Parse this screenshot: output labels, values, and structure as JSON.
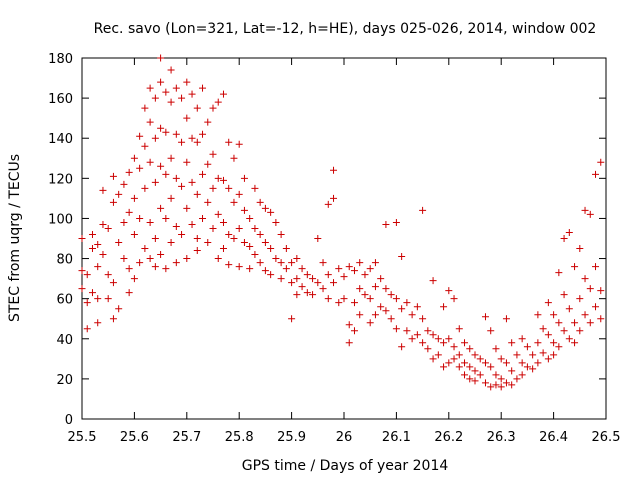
{
  "chart_data": {
    "type": "scatter",
    "title": "Rec. savo (Lon=321, Lat=-12, h=HE), days 025-026, 2014, window 002",
    "xlabel": "GPS time / Days of year 2014",
    "ylabel": "STEC from uqrg / TECUs",
    "xlim": [
      25.5,
      26.5
    ],
    "ylim": [
      0,
      180
    ],
    "xticks": [
      25.5,
      25.6,
      25.7,
      25.8,
      25.9,
      26,
      26.1,
      26.2,
      26.3,
      26.4,
      26.5
    ],
    "xtick_labels": [
      "25.5",
      "25.6",
      "25.7",
      "25.8",
      "25.9",
      "26",
      "26.1",
      "26.2",
      "26.3",
      "26.4",
      "26.5"
    ],
    "yticks": [
      0,
      20,
      40,
      60,
      80,
      100,
      120,
      140,
      160,
      180
    ],
    "ytick_labels": [
      "0",
      "20",
      "40",
      "60",
      "80",
      "100",
      "120",
      "140",
      "160",
      "180"
    ],
    "grid": false,
    "marker": "+",
    "color": "#cc0000",
    "series": [
      {
        "name": "STEC",
        "points": [
          [
            25.5,
            74
          ],
          [
            25.5,
            65
          ],
          [
            25.5,
            90
          ],
          [
            25.51,
            45
          ],
          [
            25.51,
            58
          ],
          [
            25.51,
            72
          ],
          [
            25.52,
            63
          ],
          [
            25.52,
            85
          ],
          [
            25.52,
            92
          ],
          [
            25.53,
            48
          ],
          [
            25.53,
            60
          ],
          [
            25.53,
            76
          ],
          [
            25.53,
            87
          ],
          [
            25.54,
            114
          ],
          [
            25.54,
            97
          ],
          [
            25.54,
            82
          ],
          [
            25.55,
            60
          ],
          [
            25.55,
            72
          ],
          [
            25.55,
            95
          ],
          [
            25.56,
            108
          ],
          [
            25.56,
            121
          ],
          [
            25.56,
            68
          ],
          [
            25.56,
            50
          ],
          [
            25.57,
            55
          ],
          [
            25.57,
            88
          ],
          [
            25.57,
            112
          ],
          [
            25.58,
            117
          ],
          [
            25.58,
            98
          ],
          [
            25.58,
            80
          ],
          [
            25.59,
            63
          ],
          [
            25.59,
            123
          ],
          [
            25.59,
            103
          ],
          [
            25.59,
            75
          ],
          [
            25.6,
            130
          ],
          [
            25.6,
            110
          ],
          [
            25.6,
            92
          ],
          [
            25.6,
            70
          ],
          [
            25.61,
            141
          ],
          [
            25.61,
            125
          ],
          [
            25.61,
            100
          ],
          [
            25.61,
            78
          ],
          [
            25.62,
            155
          ],
          [
            25.62,
            136
          ],
          [
            25.62,
            115
          ],
          [
            25.62,
            85
          ],
          [
            25.63,
            165
          ],
          [
            25.63,
            148
          ],
          [
            25.63,
            128
          ],
          [
            25.63,
            98
          ],
          [
            25.63,
            80
          ],
          [
            25.64,
            160
          ],
          [
            25.64,
            140
          ],
          [
            25.64,
            118
          ],
          [
            25.64,
            90
          ],
          [
            25.64,
            76
          ],
          [
            25.65,
            180
          ],
          [
            25.65,
            168
          ],
          [
            25.65,
            145
          ],
          [
            25.65,
            126
          ],
          [
            25.65,
            105
          ],
          [
            25.65,
            82
          ],
          [
            25.66,
            163
          ],
          [
            25.66,
            143
          ],
          [
            25.66,
            122
          ],
          [
            25.66,
            100
          ],
          [
            25.66,
            75
          ],
          [
            25.67,
            174
          ],
          [
            25.67,
            158
          ],
          [
            25.67,
            130
          ],
          [
            25.67,
            110
          ],
          [
            25.67,
            88
          ],
          [
            25.68,
            165
          ],
          [
            25.68,
            142
          ],
          [
            25.68,
            120
          ],
          [
            25.68,
            96
          ],
          [
            25.68,
            78
          ],
          [
            25.69,
            160
          ],
          [
            25.69,
            138
          ],
          [
            25.69,
            116
          ],
          [
            25.69,
            92
          ],
          [
            25.7,
            168
          ],
          [
            25.7,
            150
          ],
          [
            25.7,
            128
          ],
          [
            25.7,
            105
          ],
          [
            25.7,
            80
          ],
          [
            25.71,
            162
          ],
          [
            25.71,
            140
          ],
          [
            25.71,
            118
          ],
          [
            25.71,
            97
          ],
          [
            25.72,
            155
          ],
          [
            25.72,
            138
          ],
          [
            25.72,
            112
          ],
          [
            25.72,
            90
          ],
          [
            25.72,
            84
          ],
          [
            25.73,
            165
          ],
          [
            25.73,
            142
          ],
          [
            25.73,
            122
          ],
          [
            25.73,
            100
          ],
          [
            25.74,
            148
          ],
          [
            25.74,
            127
          ],
          [
            25.74,
            108
          ],
          [
            25.74,
            88
          ],
          [
            25.75,
            155
          ],
          [
            25.75,
            132
          ],
          [
            25.75,
            115
          ],
          [
            25.75,
            95
          ],
          [
            25.76,
            158
          ],
          [
            25.76,
            120
          ],
          [
            25.76,
            102
          ],
          [
            25.76,
            80
          ],
          [
            25.77,
            162
          ],
          [
            25.77,
            119
          ],
          [
            25.77,
            98
          ],
          [
            25.77,
            85
          ],
          [
            25.78,
            138
          ],
          [
            25.78,
            115
          ],
          [
            25.78,
            92
          ],
          [
            25.78,
            77
          ],
          [
            25.79,
            130
          ],
          [
            25.79,
            108
          ],
          [
            25.79,
            90
          ],
          [
            25.8,
            137
          ],
          [
            25.8,
            112
          ],
          [
            25.8,
            95
          ],
          [
            25.8,
            76
          ],
          [
            25.81,
            120
          ],
          [
            25.81,
            104
          ],
          [
            25.81,
            88
          ],
          [
            25.82,
            100
          ],
          [
            25.82,
            86
          ],
          [
            25.82,
            75
          ],
          [
            25.83,
            115
          ],
          [
            25.83,
            95
          ],
          [
            25.83,
            82
          ],
          [
            25.84,
            108
          ],
          [
            25.84,
            92
          ],
          [
            25.84,
            78
          ],
          [
            25.85,
            105
          ],
          [
            25.85,
            88
          ],
          [
            25.85,
            74
          ],
          [
            25.86,
            103
          ],
          [
            25.86,
            85
          ],
          [
            25.86,
            72
          ],
          [
            25.87,
            98
          ],
          [
            25.87,
            80
          ],
          [
            25.88,
            92
          ],
          [
            25.88,
            78
          ],
          [
            25.88,
            70
          ],
          [
            25.89,
            85
          ],
          [
            25.89,
            75
          ],
          [
            25.9,
            78
          ],
          [
            25.9,
            68
          ],
          [
            25.9,
            50
          ],
          [
            25.91,
            80
          ],
          [
            25.91,
            70
          ],
          [
            25.91,
            62
          ],
          [
            25.92,
            75
          ],
          [
            25.92,
            66
          ],
          [
            25.93,
            72
          ],
          [
            25.93,
            63
          ],
          [
            25.94,
            70
          ],
          [
            25.94,
            62
          ],
          [
            25.95,
            90
          ],
          [
            25.95,
            68
          ],
          [
            25.96,
            78
          ],
          [
            25.96,
            65
          ],
          [
            25.97,
            107
          ],
          [
            25.97,
            72
          ],
          [
            25.97,
            60
          ],
          [
            25.98,
            124
          ],
          [
            25.98,
            110
          ],
          [
            25.98,
            68
          ],
          [
            25.99,
            75
          ],
          [
            25.99,
            58
          ],
          [
            26.0,
            71
          ],
          [
            26.0,
            60
          ],
          [
            26.01,
            76
          ],
          [
            26.01,
            47
          ],
          [
            26.01,
            38
          ],
          [
            26.02,
            74
          ],
          [
            26.02,
            58
          ],
          [
            26.02,
            44
          ],
          [
            26.03,
            78
          ],
          [
            26.03,
            65
          ],
          [
            26.03,
            52
          ],
          [
            26.04,
            72
          ],
          [
            26.04,
            62
          ],
          [
            26.05,
            75
          ],
          [
            26.05,
            60
          ],
          [
            26.05,
            48
          ],
          [
            26.06,
            78
          ],
          [
            26.06,
            66
          ],
          [
            26.06,
            52
          ],
          [
            26.07,
            70
          ],
          [
            26.07,
            56
          ],
          [
            26.08,
            65
          ],
          [
            26.08,
            54
          ],
          [
            26.08,
            97
          ],
          [
            26.09,
            62
          ],
          [
            26.09,
            50
          ],
          [
            26.1,
            98
          ],
          [
            26.1,
            60
          ],
          [
            26.1,
            45
          ],
          [
            26.11,
            81
          ],
          [
            26.11,
            55
          ],
          [
            26.11,
            36
          ],
          [
            26.12,
            58
          ],
          [
            26.12,
            44
          ],
          [
            26.13,
            52
          ],
          [
            26.13,
            40
          ],
          [
            26.14,
            56
          ],
          [
            26.14,
            42
          ],
          [
            26.15,
            104
          ],
          [
            26.15,
            50
          ],
          [
            26.15,
            38
          ],
          [
            26.16,
            44
          ],
          [
            26.16,
            35
          ],
          [
            26.17,
            69
          ],
          [
            26.17,
            42
          ],
          [
            26.17,
            30
          ],
          [
            26.18,
            40
          ],
          [
            26.18,
            32
          ],
          [
            26.19,
            56
          ],
          [
            26.19,
            38
          ],
          [
            26.19,
            26
          ],
          [
            26.2,
            64
          ],
          [
            26.2,
            40
          ],
          [
            26.2,
            28
          ],
          [
            26.21,
            60
          ],
          [
            26.21,
            36
          ],
          [
            26.21,
            30
          ],
          [
            26.22,
            45
          ],
          [
            26.22,
            32
          ],
          [
            26.22,
            26
          ],
          [
            26.23,
            38
          ],
          [
            26.23,
            28
          ],
          [
            26.23,
            22
          ],
          [
            26.24,
            35
          ],
          [
            26.24,
            26
          ],
          [
            26.24,
            20
          ],
          [
            26.25,
            32
          ],
          [
            26.25,
            24
          ],
          [
            26.25,
            19
          ],
          [
            26.26,
            30
          ],
          [
            26.26,
            22
          ],
          [
            26.27,
            51
          ],
          [
            26.27,
            28
          ],
          [
            26.27,
            18
          ],
          [
            26.28,
            44
          ],
          [
            26.28,
            26
          ],
          [
            26.28,
            16
          ],
          [
            26.29,
            35
          ],
          [
            26.29,
            22
          ],
          [
            26.29,
            17
          ],
          [
            26.3,
            30
          ],
          [
            26.3,
            20
          ],
          [
            26.3,
            16
          ],
          [
            26.31,
            50
          ],
          [
            26.31,
            28
          ],
          [
            26.31,
            18
          ],
          [
            26.32,
            38
          ],
          [
            26.32,
            24
          ],
          [
            26.32,
            17
          ],
          [
            26.33,
            32
          ],
          [
            26.33,
            20
          ],
          [
            26.34,
            40
          ],
          [
            26.34,
            28
          ],
          [
            26.34,
            22
          ],
          [
            26.35,
            36
          ],
          [
            26.35,
            26
          ],
          [
            26.36,
            32
          ],
          [
            26.36,
            25
          ],
          [
            26.37,
            52
          ],
          [
            26.37,
            38
          ],
          [
            26.37,
            28
          ],
          [
            26.38,
            45
          ],
          [
            26.38,
            33
          ],
          [
            26.39,
            58
          ],
          [
            26.39,
            42
          ],
          [
            26.39,
            30
          ],
          [
            26.4,
            52
          ],
          [
            26.4,
            38
          ],
          [
            26.4,
            32
          ],
          [
            26.41,
            73
          ],
          [
            26.41,
            48
          ],
          [
            26.41,
            36
          ],
          [
            26.42,
            90
          ],
          [
            26.42,
            62
          ],
          [
            26.42,
            44
          ],
          [
            26.43,
            93
          ],
          [
            26.43,
            55
          ],
          [
            26.43,
            40
          ],
          [
            26.44,
            76
          ],
          [
            26.44,
            48
          ],
          [
            26.44,
            38
          ],
          [
            26.45,
            85
          ],
          [
            26.45,
            60
          ],
          [
            26.45,
            44
          ],
          [
            26.46,
            104
          ],
          [
            26.46,
            70
          ],
          [
            26.46,
            52
          ],
          [
            26.47,
            102
          ],
          [
            26.47,
            65
          ],
          [
            26.47,
            48
          ],
          [
            26.48,
            122
          ],
          [
            26.48,
            76
          ],
          [
            26.48,
            56
          ],
          [
            26.49,
            128
          ],
          [
            26.49,
            64
          ],
          [
            26.49,
            50
          ]
        ]
      }
    ]
  }
}
